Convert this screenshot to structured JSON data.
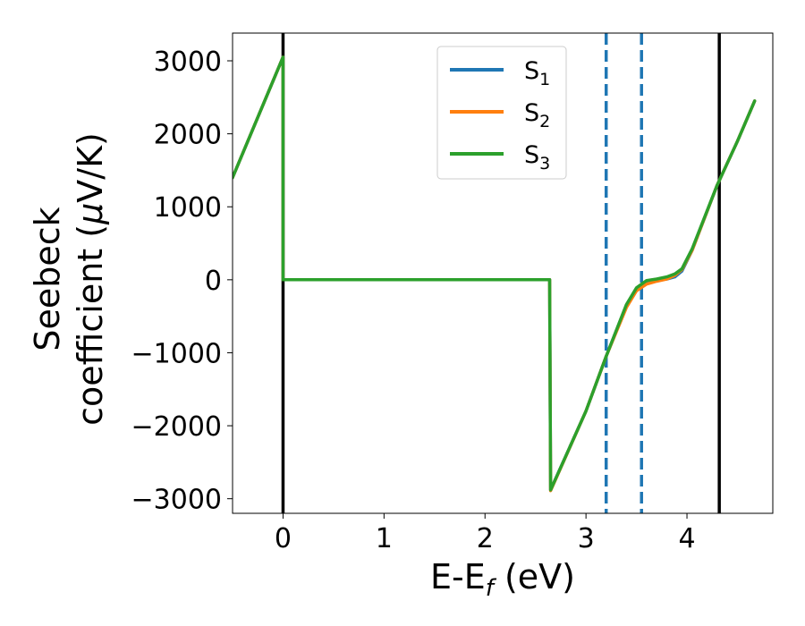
{
  "chart_data": {
    "type": "line",
    "xlabel": "E-E",
    "xlabel_sub": "f",
    "xlabel_unit": "(eV)",
    "ylabel_line1": "Seebeck",
    "ylabel_line2": "coefficient  (",
    "ylabel_mu": "μ",
    "ylabel_unit": "V/K)",
    "xlim": [
      -0.5,
      4.85
    ],
    "ylim": [
      -3200,
      3380
    ],
    "xticks": [
      0,
      1,
      2,
      3,
      4
    ],
    "xtick_labels": [
      "0",
      "1",
      "2",
      "3",
      "4"
    ],
    "yticks": [
      -3000,
      -2000,
      -1000,
      0,
      1000,
      2000,
      3000
    ],
    "ytick_labels": [
      "−3000",
      "−2000",
      "−1000",
      "0",
      "1000",
      "2000",
      "3000"
    ],
    "grid": false,
    "legend_position": "upper-center",
    "vertical_lines": [
      {
        "x": 0.0,
        "style": "solid",
        "color": "#000000"
      },
      {
        "x": 4.32,
        "style": "solid",
        "color": "#000000"
      },
      {
        "x": 3.2,
        "style": "dashed",
        "color": "#1f77b4"
      },
      {
        "x": 3.55,
        "style": "dashed",
        "color": "#1f77b4"
      }
    ],
    "series": [
      {
        "name": "S",
        "subscript": "1",
        "color": "#1f77b4",
        "x": [
          -0.5,
          0.0,
          0.0,
          2.64,
          2.64,
          2.65,
          3.0,
          3.2,
          3.4,
          3.5,
          3.6,
          3.7,
          3.8,
          3.88,
          3.95,
          4.05,
          4.3,
          4.5,
          4.67
        ],
        "y": [
          1400,
          3050,
          0,
          0,
          0,
          -2880,
          -1800,
          -1050,
          -350,
          -120,
          -20,
          0,
          10,
          40,
          120,
          400,
          1300,
          1900,
          2450
        ]
      },
      {
        "name": "S",
        "subscript": "2",
        "color": "#ff7f0e",
        "x": [
          -0.5,
          0.0,
          0.0,
          2.64,
          2.64,
          2.65,
          3.0,
          3.2,
          3.4,
          3.5,
          3.6,
          3.7,
          3.8,
          3.88,
          3.95,
          4.05,
          4.3,
          4.5,
          4.67
        ],
        "y": [
          1400,
          3050,
          0,
          0,
          0,
          -2890,
          -1800,
          -1050,
          -380,
          -150,
          -60,
          -20,
          10,
          60,
          140,
          400,
          1300,
          1900,
          2450
        ]
      },
      {
        "name": "S",
        "subscript": "3",
        "color": "#2ca02c",
        "x": [
          -0.5,
          0.0,
          0.0,
          2.64,
          2.64,
          2.65,
          3.0,
          3.2,
          3.4,
          3.5,
          3.6,
          3.7,
          3.8,
          3.88,
          3.95,
          4.05,
          4.3,
          4.5,
          4.67
        ],
        "y": [
          1400,
          3050,
          0,
          0,
          0,
          -2880,
          -1800,
          -1050,
          -340,
          -110,
          -10,
          10,
          40,
          80,
          150,
          420,
          1300,
          1900,
          2450
        ]
      }
    ]
  }
}
